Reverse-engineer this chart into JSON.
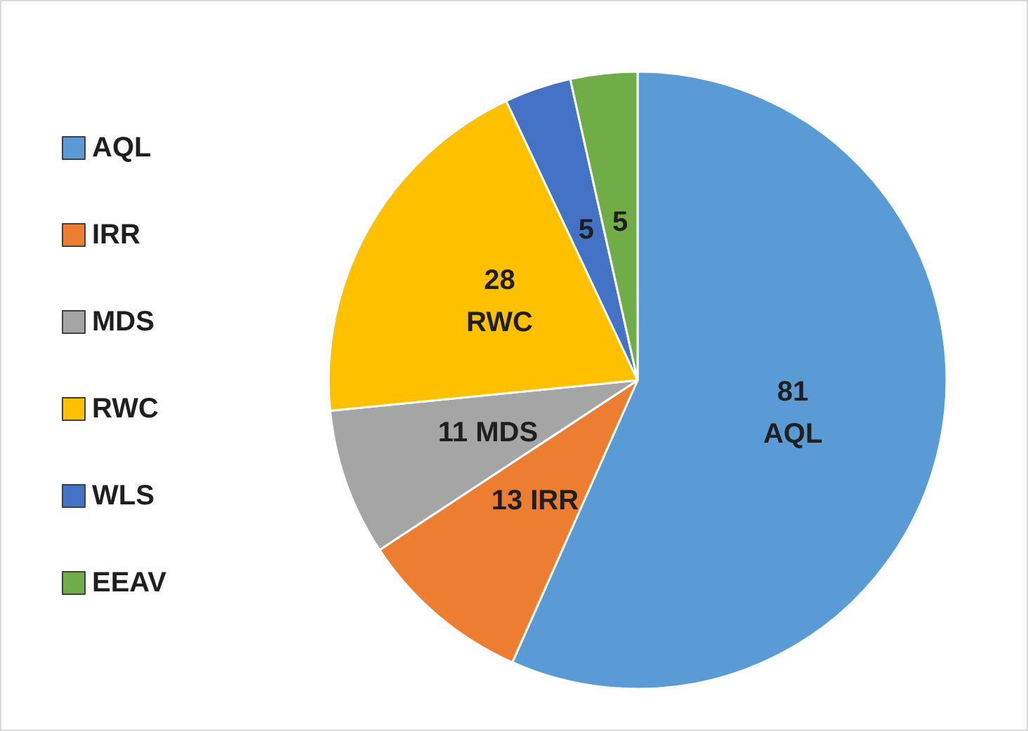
{
  "chart_data": {
    "type": "pie",
    "categories": [
      "AQL",
      "IRR",
      "MDS",
      "RWC",
      "WLS",
      "EEAV"
    ],
    "values": [
      81,
      13,
      11,
      28,
      5,
      5
    ],
    "colors": [
      "#5b9bd5",
      "#ed7d31",
      "#a5a5a5",
      "#ffc000",
      "#4472c4",
      "#70ad47"
    ],
    "value_labels": [
      "81\nAQL",
      "13 IRR",
      "11 MDS",
      "28\nRWC",
      "5",
      "5"
    ],
    "legend": "left"
  }
}
